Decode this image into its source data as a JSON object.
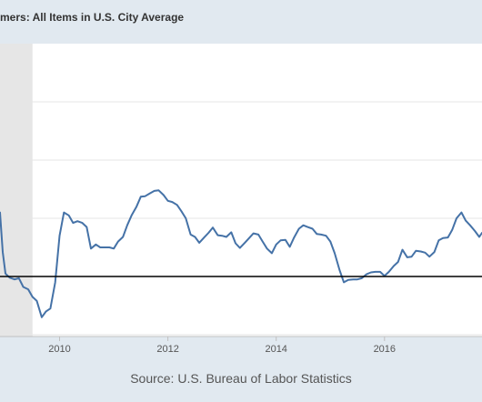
{
  "chart_data": {
    "type": "line",
    "title": "mers: All Items in U.S. City Average",
    "source": "Source: U.S. Bureau of Labor Statistics",
    "x_ticks": [
      "2010",
      "2012",
      "2014",
      "2016"
    ],
    "x_range": [
      2008.9,
      2017.8
    ],
    "recession_shading": [
      2008.9,
      2009.5
    ],
    "reference_line_y": 0,
    "grid": "horizontal",
    "series": [
      {
        "color": "#4572a7",
        "x": [
          2008.9,
          2008.95,
          2009.0,
          2009.08,
          2009.17,
          2009.25,
          2009.33,
          2009.42,
          2009.5,
          2009.58,
          2009.67,
          2009.75,
          2009.83,
          2009.92,
          2010.0,
          2010.08,
          2010.17,
          2010.25,
          2010.33,
          2010.42,
          2010.5,
          2010.58,
          2010.67,
          2010.75,
          2010.83,
          2010.92,
          2011.0,
          2011.08,
          2011.17,
          2011.25,
          2011.33,
          2011.42,
          2011.5,
          2011.58,
          2011.67,
          2011.75,
          2011.83,
          2011.92,
          2012.0,
          2012.08,
          2012.17,
          2012.25,
          2012.33,
          2012.42,
          2012.5,
          2012.58,
          2012.67,
          2012.75,
          2012.83,
          2012.92,
          2013.0,
          2013.08,
          2013.17,
          2013.25,
          2013.33,
          2013.42,
          2013.5,
          2013.58,
          2013.67,
          2013.75,
          2013.83,
          2013.92,
          2014.0,
          2014.08,
          2014.17,
          2014.25,
          2014.33,
          2014.42,
          2014.5,
          2014.58,
          2014.67,
          2014.75,
          2014.83,
          2014.92,
          2015.0,
          2015.08,
          2015.17,
          2015.25,
          2015.33,
          2015.42,
          2015.5,
          2015.58,
          2015.67,
          2015.75,
          2015.83,
          2015.92,
          2016.0,
          2016.08,
          2016.17,
          2016.25,
          2016.33,
          2016.42,
          2016.5,
          2016.58,
          2016.67,
          2016.75,
          2016.83,
          2016.92,
          2017.0,
          2017.08,
          2017.17,
          2017.25,
          2017.33,
          2017.42,
          2017.5,
          2017.58,
          2017.67,
          2017.75,
          2017.8
        ],
        "y": [
          1.1,
          0.42,
          0.05,
          -0.02,
          -0.05,
          -0.03,
          -0.18,
          -0.22,
          -0.35,
          -0.42,
          -0.7,
          -0.6,
          -0.55,
          -0.1,
          0.7,
          1.1,
          1.05,
          0.92,
          0.95,
          0.92,
          0.85,
          0.48,
          0.55,
          0.5,
          0.5,
          0.5,
          0.48,
          0.6,
          0.68,
          0.88,
          1.05,
          1.2,
          1.37,
          1.38,
          1.43,
          1.47,
          1.48,
          1.4,
          1.3,
          1.28,
          1.23,
          1.12,
          1.0,
          0.72,
          0.68,
          0.58,
          0.67,
          0.75,
          0.84,
          0.71,
          0.7,
          0.68,
          0.76,
          0.57,
          0.49,
          0.58,
          0.66,
          0.74,
          0.72,
          0.6,
          0.48,
          0.4,
          0.55,
          0.62,
          0.63,
          0.51,
          0.67,
          0.82,
          0.88,
          0.85,
          0.82,
          0.73,
          0.72,
          0.7,
          0.6,
          0.4,
          0.11,
          -0.1,
          -0.06,
          -0.05,
          -0.05,
          -0.03,
          0.04,
          0.07,
          0.08,
          0.08,
          0.01,
          0.08,
          0.18,
          0.25,
          0.46,
          0.33,
          0.34,
          0.44,
          0.43,
          0.41,
          0.34,
          0.42,
          0.62,
          0.66,
          0.67,
          0.8,
          1.0,
          1.1,
          0.96,
          0.88,
          0.78,
          0.68,
          0.75
        ]
      }
    ]
  }
}
